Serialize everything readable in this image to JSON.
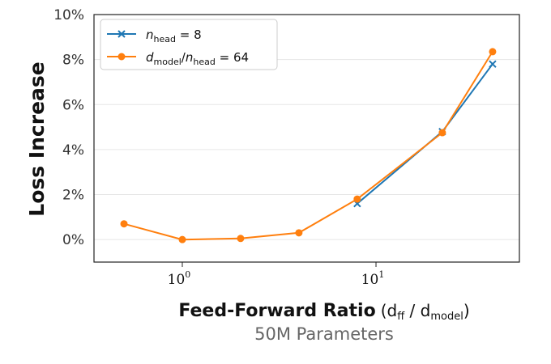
{
  "chart_data": {
    "type": "line",
    "title": "",
    "subtitle": "50M Parameters",
    "xlabel": {
      "bold": "Feed-Forward Ratio",
      "open": "(d",
      "sub1": "ff",
      "mid": " / d",
      "sub2": "model",
      "close": ")"
    },
    "ylabel": "Loss Increase",
    "xscale": "log",
    "xlim": [
      0.35,
      55
    ],
    "ylim": [
      -1,
      10
    ],
    "yticks": [
      0,
      2,
      4,
      6,
      8,
      10
    ],
    "ytick_labels": [
      "0%",
      "2%",
      "4%",
      "6%",
      "8%",
      "10%"
    ],
    "xticks": [
      {
        "value": 1,
        "base": "10",
        "exp": "0"
      },
      {
        "value": 10,
        "base": "10",
        "exp": "1"
      }
    ],
    "grid": "horizontal",
    "legend_position": "top-left",
    "series": [
      {
        "name": "n_head = 8",
        "legend": {
          "var": "n",
          "sub": "head",
          "rest": " = 8"
        },
        "color": "#1f77b4",
        "marker": "x",
        "x": [
          8,
          22,
          40
        ],
        "y": [
          1.6,
          4.8,
          7.8
        ]
      },
      {
        "name": "d_model/n_head = 64",
        "legend": {
          "var": "d",
          "sub": "model",
          "mid": "/",
          "var2": "n",
          "sub2": "head",
          "rest": " = 64"
        },
        "color": "#ff7f0e",
        "marker": "o",
        "x": [
          0.5,
          1,
          2,
          4,
          8,
          22,
          40
        ],
        "y": [
          0.7,
          0.0,
          0.05,
          0.3,
          1.8,
          4.75,
          8.35
        ]
      }
    ]
  }
}
